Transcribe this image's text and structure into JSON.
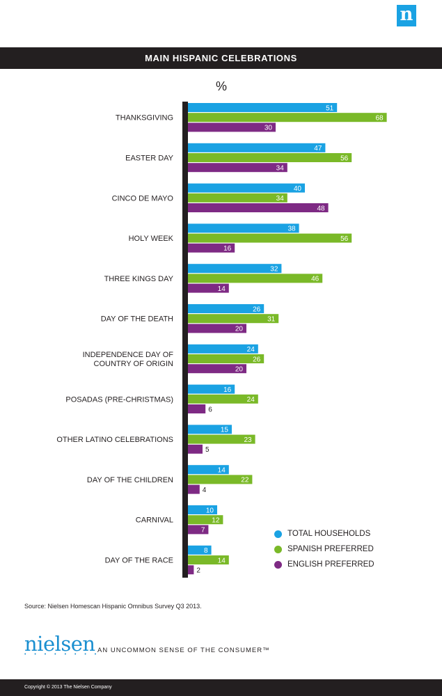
{
  "logo": {
    "letter": "n"
  },
  "chart_data": {
    "type": "bar",
    "orientation": "horizontal",
    "title": "MAIN HISPANIC CELEBRATIONS",
    "unit_label": "%",
    "categories": [
      "THANKSGIVING",
      "EASTER DAY",
      "CINCO DE MAYO",
      "HOLY WEEK",
      "THREE KINGS DAY",
      "DAY OF THE DEATH",
      "INDEPENDENCE DAY OF\nCOUNTRY OF ORIGIN",
      "POSADAS (PRE-CHRISTMAS)",
      "OTHER LATINO CELEBRATIONS",
      "DAY OF THE CHILDREN",
      "CARNIVAL",
      "DAY OF THE RACE"
    ],
    "series": [
      {
        "name": "TOTAL HOUSEHOLDS",
        "color": "#1aa2e3",
        "values": [
          51,
          47,
          40,
          38,
          32,
          26,
          24,
          16,
          15,
          14,
          10,
          8
        ]
      },
      {
        "name": "SPANISH PREFERRED",
        "color": "#7ab928",
        "values": [
          68,
          56,
          34,
          56,
          46,
          31,
          26,
          24,
          23,
          22,
          12,
          14
        ]
      },
      {
        "name": "ENGLISH PREFERRED",
        "color": "#7e2a84",
        "values": [
          30,
          34,
          48,
          16,
          14,
          20,
          20,
          6,
          5,
          4,
          7,
          2
        ]
      }
    ],
    "xlim": [
      0,
      68
    ],
    "legend_position": "bottom-right"
  },
  "source": "Source: Nielsen Homescan Hispanic Omnibus Survey Q3 2013.",
  "brand": {
    "name": "nielsen",
    "dots": "• • • • • • • •",
    "tagline": "AN UNCOMMON SENSE OF THE CONSUMER™"
  },
  "footer": {
    "copyright": "Copyright © 2013 The Nielsen Company"
  }
}
